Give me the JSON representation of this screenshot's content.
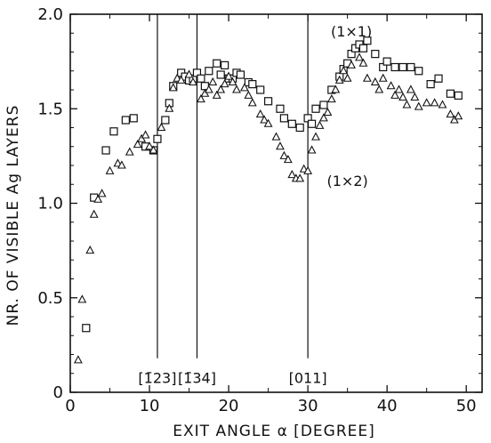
{
  "chart_data": {
    "type": "scatter",
    "title": "",
    "xlabel": "EXIT ANGLE α [DEGREE]",
    "ylabel": "NR. OF VISIBLE Ag LAYERS",
    "xlim": [
      0,
      52
    ],
    "ylim": [
      0,
      2.0
    ],
    "xticks": [
      0,
      10,
      20,
      30,
      40,
      50
    ],
    "yticks": [
      0,
      0.5,
      1.0,
      1.5,
      2.0
    ],
    "x_tick_labels": [
      "0",
      "10",
      "20",
      "30",
      "40",
      "50"
    ],
    "y_tick_labels": [
      "0",
      "0.5",
      "1.0",
      "1.5",
      "2.0"
    ],
    "grid": false,
    "legend": null,
    "vertical_lines": [
      {
        "x": 11.0,
        "label": "[1̄23]"
      },
      {
        "x": 16.0,
        "label": "[1̄34]"
      },
      {
        "x": 30.0,
        "label": "[011]"
      }
    ],
    "annotations": [
      {
        "text": "(1×1)",
        "x": 35.5,
        "y": 1.91
      },
      {
        "text": "(1×2)",
        "x": 35.0,
        "y": 1.12
      }
    ],
    "series": [
      {
        "marker": "square",
        "x": [
          2.0,
          3.0,
          4.5,
          5.5,
          7.0,
          8.0,
          9.5,
          10.5,
          11.0,
          12.0,
          12.5,
          13.0,
          14.0,
          14.5,
          15.0,
          15.5,
          16.0,
          16.5,
          17.0,
          17.5,
          18.5,
          19.0,
          19.5,
          20.0,
          20.5,
          21.0,
          21.5,
          22.5,
          23.0,
          24.0,
          25.0,
          26.5,
          27.0,
          28.0,
          29.0,
          30.0,
          30.5,
          31.0,
          32.0,
          33.0,
          34.0,
          34.5,
          35.0,
          35.5,
          36.0,
          36.5,
          37.0,
          37.5,
          38.5,
          39.5,
          40.0,
          41.0,
          42.0,
          43.0,
          44.0,
          45.5,
          46.5,
          48.0,
          49.0
        ],
        "y": [
          0.34,
          1.03,
          1.28,
          1.38,
          1.44,
          1.45,
          1.3,
          1.28,
          1.34,
          1.44,
          1.53,
          1.62,
          1.69,
          1.67,
          1.65,
          1.66,
          1.69,
          1.66,
          1.62,
          1.7,
          1.74,
          1.68,
          1.73,
          1.66,
          1.66,
          1.69,
          1.68,
          1.64,
          1.63,
          1.6,
          1.54,
          1.5,
          1.45,
          1.42,
          1.4,
          1.45,
          1.42,
          1.5,
          1.52,
          1.6,
          1.67,
          1.71,
          1.74,
          1.79,
          1.82,
          1.84,
          1.82,
          1.86,
          1.79,
          1.72,
          1.75,
          1.72,
          1.72,
          1.72,
          1.7,
          1.63,
          1.66,
          1.58,
          1.57
        ]
      },
      {
        "marker": "triangle",
        "x": [
          1.0,
          1.5,
          2.5,
          3.0,
          3.5,
          4.0,
          5.0,
          6.0,
          6.5,
          7.5,
          8.5,
          9.0,
          9.5,
          10.0,
          10.5,
          11.5,
          12.5,
          13.0,
          13.5,
          14.0,
          15.0,
          15.5,
          16.5,
          17.0,
          17.5,
          18.0,
          18.5,
          19.0,
          19.5,
          20.0,
          20.5,
          21.0,
          22.0,
          22.5,
          23.0,
          24.0,
          24.5,
          25.0,
          26.0,
          26.5,
          27.0,
          27.5,
          28.0,
          28.5,
          29.0,
          29.5,
          30.0,
          30.5,
          31.0,
          31.5,
          32.0,
          32.5,
          33.0,
          33.5,
          34.0,
          34.5,
          35.0,
          35.5,
          36.5,
          37.0,
          37.5,
          38.5,
          39.0,
          39.5,
          40.5,
          41.0,
          41.5,
          42.0,
          42.5,
          43.0,
          43.5,
          44.0,
          45.0,
          46.0,
          47.0,
          48.0,
          48.5,
          49.0
        ],
        "y": [
          0.17,
          0.49,
          0.75,
          0.94,
          1.02,
          1.05,
          1.17,
          1.21,
          1.2,
          1.27,
          1.31,
          1.34,
          1.36,
          1.3,
          1.28,
          1.4,
          1.5,
          1.61,
          1.66,
          1.65,
          1.68,
          1.64,
          1.55,
          1.58,
          1.6,
          1.64,
          1.57,
          1.6,
          1.63,
          1.67,
          1.64,
          1.6,
          1.61,
          1.57,
          1.53,
          1.47,
          1.44,
          1.42,
          1.35,
          1.3,
          1.25,
          1.23,
          1.15,
          1.13,
          1.13,
          1.18,
          1.17,
          1.28,
          1.35,
          1.41,
          1.45,
          1.48,
          1.55,
          1.6,
          1.65,
          1.7,
          1.66,
          1.73,
          1.77,
          1.74,
          1.66,
          1.64,
          1.6,
          1.66,
          1.62,
          1.57,
          1.6,
          1.56,
          1.52,
          1.6,
          1.56,
          1.51,
          1.53,
          1.53,
          1.52,
          1.47,
          1.44,
          1.46
        ]
      }
    ]
  }
}
